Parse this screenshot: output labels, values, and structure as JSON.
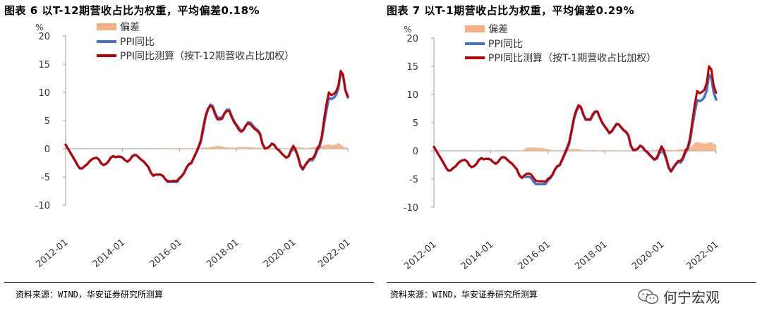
{
  "figures": [
    {
      "title": "图表 6 以T-12期营收占比为权重，平均偏差0.18%",
      "source": "资料来源：WIND，华安证券研究所测算"
    },
    {
      "title": "图表 7 以T-1期营收占比为权重，平均偏差0.29%",
      "source": "资料来源：WIND，华安证券研究所测算"
    }
  ],
  "watermark": {
    "text": "何宁宏观",
    "icon": "wechat-icon"
  },
  "colors": {
    "ppi": "#4472c4",
    "est": "#c00000",
    "dev": "#f4b183"
  },
  "chart_data": [
    {
      "type": "line",
      "title": "图表 6 以T-12期营收占比为权重，平均偏差0.18%",
      "ylabel": "%",
      "ylim": [
        -10,
        20
      ],
      "yticks": [
        "20",
        "15",
        "10",
        "5",
        "0",
        "-5",
        "-10"
      ],
      "xticks": [
        "2012-01",
        "2014-01",
        "2016-01",
        "2018-01",
        "2020-01",
        "2022-01"
      ],
      "x_start": "2012-01",
      "legend": [
        "偏差",
        "PPI同比",
        "PPI同比测算（按T-12期营收占比加权）"
      ],
      "series": [
        {
          "name": "PPI同比",
          "type": "line",
          "key": "ppi",
          "values": [
            0.7,
            0,
            -0.7,
            -1.4,
            -2.1,
            -2.9,
            -3.5,
            -3.5,
            -3.1,
            -2.8,
            -2.3,
            -1.9,
            -1.7,
            -1.6,
            -1.9,
            -2.6,
            -2.9,
            -2.7,
            -2.3,
            -1.6,
            -1.3,
            -1.5,
            -1.4,
            -1.4,
            -1.6,
            -2,
            -2.3,
            -2,
            -1.4,
            -1.1,
            -1.2,
            -1.6,
            -2,
            -2.3,
            -2.8,
            -3.3,
            -4.3,
            -4.8,
            -4.6,
            -4.6,
            -4.6,
            -4.8,
            -5.4,
            -5.9,
            -5.9,
            -5.9,
            -5.9,
            -5.9,
            -5.3,
            -4.9,
            -4.3,
            -3.4,
            -2.8,
            -2.6,
            -1.7,
            -0.8,
            0.1,
            1.2,
            3.3,
            5.5,
            6.9,
            7.8,
            7.6,
            6.4,
            5.5,
            5.5,
            5.5,
            6.3,
            6.9,
            6.9,
            5.8,
            4.9,
            4.3,
            3.7,
            3.1,
            3.4,
            4.1,
            4.7,
            4.6,
            4.1,
            3.6,
            3.3,
            2.7,
            0.9,
            0.1,
            0.1,
            0.4,
            0.9,
            0.6,
            0,
            -0.3,
            -0.8,
            -1.2,
            -1.6,
            -1.4,
            -0.5,
            0.1,
            -0.4,
            -1.5,
            -3.1,
            -3.7,
            -3,
            -2.4,
            -2,
            -2.1,
            -1.5,
            -0.4,
            0.3,
            1.7,
            4.4,
            6.8,
            9,
            8.8,
            9,
            9.5,
            10.7,
            13.5,
            12.9,
            10.3,
            9.1
          ]
        },
        {
          "name": "PPI同比测算（按T-12期营收占比加权）",
          "type": "line",
          "key": "est",
          "values": [
            0.7,
            0,
            -0.7,
            -1.4,
            -2.1,
            -2.9,
            -3.5,
            -3.5,
            -3.1,
            -2.8,
            -2.3,
            -1.9,
            -1.7,
            -1.6,
            -1.9,
            -2.6,
            -2.9,
            -2.7,
            -2.3,
            -1.6,
            -1.3,
            -1.5,
            -1.4,
            -1.4,
            -1.6,
            -2,
            -2.3,
            -2,
            -1.4,
            -1.1,
            -1.2,
            -1.6,
            -2,
            -2.3,
            -2.8,
            -3.3,
            -4.3,
            -4.8,
            -4.6,
            -4.6,
            -4.6,
            -4.8,
            -5.4,
            -5.7,
            -5.8,
            -5.7,
            -5.7,
            -5.7,
            -5.2,
            -4.8,
            -4.2,
            -3.3,
            -2.7,
            -2.5,
            -1.6,
            -0.7,
            0.3,
            1.5,
            3.8,
            5.8,
            7.1,
            7.6,
            7.3,
            6.1,
            5.2,
            5.2,
            5.3,
            6.2,
            6.7,
            6.7,
            5.6,
            4.7,
            4.1,
            3.4,
            3,
            3.3,
            4.1,
            4.5,
            4.3,
            3.8,
            3.4,
            3.1,
            2.5,
            0.8,
            0,
            0.1,
            0.4,
            0.9,
            0.7,
            0,
            -0.3,
            -0.8,
            -1.2,
            -1.6,
            -1.3,
            -0.3,
            0.5,
            -0.2,
            -1.3,
            -2.9,
            -3.6,
            -2.9,
            -2.3,
            -1.8,
            -1.8,
            -1.2,
            0,
            0.6,
            2.2,
            5.3,
            7.9,
            10,
            9.5,
            9.7,
            10.1,
            11.2,
            13.8,
            13.1,
            10.4,
            9.3
          ]
        },
        {
          "name": "偏差",
          "type": "area",
          "key": "dev",
          "values": [
            0,
            0,
            0,
            0,
            0,
            0,
            0,
            0,
            0,
            0,
            0,
            0,
            0,
            0,
            0,
            0,
            0,
            0,
            0,
            0,
            0,
            0,
            0,
            0,
            0,
            0,
            0,
            0,
            0,
            0,
            0,
            0,
            0,
            0,
            0,
            0,
            0,
            0,
            0,
            0,
            0.1,
            0.1,
            0.1,
            0.1,
            0.1,
            0.1,
            0.1,
            0.1,
            0.1,
            0.1,
            0.1,
            0.1,
            0.1,
            0.1,
            0.1,
            0.1,
            0.1,
            0.1,
            0.2,
            0.2,
            0.2,
            0.3,
            0.4,
            0.4,
            0.5,
            0.5,
            0.4,
            0.3,
            0.2,
            0.2,
            0.2,
            0.2,
            0.2,
            0.3,
            0.3,
            0.3,
            0.3,
            0.3,
            0.3,
            0.2,
            0.2,
            0.2,
            0.2,
            0.1,
            0.1,
            0.1,
            0.1,
            0.1,
            0.1,
            0.1,
            0.1,
            0.1,
            0.1,
            0.1,
            0.1,
            0.1,
            0.2,
            0.3,
            0.3,
            0.2,
            0.2,
            0.1,
            0.1,
            0.2,
            0.2,
            0.3,
            0.4,
            0.4,
            0.5,
            0.6,
            0.7,
            0.8,
            0.6,
            0.7,
            0.7,
            1.1,
            0.7,
            0.4,
            0.2,
            0.2
          ]
        }
      ]
    },
    {
      "type": "line",
      "title": "图表 7 以T-1期营收占比为权重，平均偏差0.29%",
      "ylabel": "%",
      "ylim": [
        -10,
        20
      ],
      "yticks": [
        "20",
        "15",
        "10",
        "5",
        "0",
        "-5",
        "-10"
      ],
      "xticks": [
        "2012-01",
        "2014-01",
        "2016-01",
        "2018-01",
        "2020-01",
        "2022-01"
      ],
      "x_start": "2012-01",
      "legend": [
        "偏差",
        "PPI同比",
        "PPI同比测算（按T-1期营收占比加权）"
      ],
      "series": [
        {
          "name": "PPI同比",
          "type": "line",
          "key": "ppi",
          "values": [
            0.7,
            0,
            -0.7,
            -1.4,
            -2.1,
            -2.9,
            -3.5,
            -3.5,
            -3.1,
            -2.8,
            -2.3,
            -1.9,
            -1.7,
            -1.6,
            -1.9,
            -2.6,
            -2.9,
            -2.7,
            -2.3,
            -1.6,
            -1.3,
            -1.5,
            -1.4,
            -1.4,
            -1.6,
            -2,
            -2.3,
            -2,
            -1.4,
            -1.1,
            -1.2,
            -1.6,
            -2,
            -2.3,
            -2.8,
            -3.3,
            -4.3,
            -4.8,
            -4.6,
            -4.6,
            -4.6,
            -4.8,
            -5.4,
            -5.9,
            -5.9,
            -5.9,
            -5.9,
            -5.9,
            -5.3,
            -4.9,
            -4.3,
            -3.4,
            -2.8,
            -2.6,
            -1.7,
            -0.8,
            0.1,
            1.2,
            3.3,
            5.5,
            6.9,
            7.8,
            7.6,
            6.4,
            5.5,
            5.5,
            5.5,
            6.3,
            6.9,
            6.9,
            5.8,
            4.9,
            4.3,
            3.7,
            3.1,
            3.4,
            4.1,
            4.7,
            4.6,
            4.1,
            3.6,
            3.3,
            2.7,
            0.9,
            0.1,
            0.1,
            0.4,
            0.9,
            0.6,
            0,
            -0.3,
            -0.8,
            -1.2,
            -1.6,
            -1.4,
            -0.5,
            0.1,
            -0.4,
            -1.5,
            -3.1,
            -3.7,
            -3,
            -2.4,
            -2,
            -2.1,
            -1.5,
            -0.4,
            0.3,
            1.7,
            4.4,
            6.8,
            9,
            8.8,
            9,
            9.5,
            10.7,
            13.5,
            12.9,
            10.3,
            9.1
          ]
        },
        {
          "name": "PPI同比测算（按T-1期营收占比加权）",
          "type": "line",
          "key": "est",
          "values": [
            0.7,
            0,
            -0.7,
            -1.4,
            -2.1,
            -2.9,
            -3.5,
            -3.5,
            -3.1,
            -2.8,
            -2.3,
            -1.9,
            -1.7,
            -1.6,
            -1.9,
            -2.6,
            -2.9,
            -2.7,
            -2.3,
            -1.6,
            -1.3,
            -1.5,
            -1.4,
            -1.4,
            -1.6,
            -2,
            -2.3,
            -2,
            -1.4,
            -1.1,
            -1.2,
            -1.6,
            -2,
            -2.3,
            -2.8,
            -3.3,
            -4.3,
            -4.8,
            -4.4,
            -4.1,
            -4,
            -4.2,
            -4.8,
            -5.3,
            -5.4,
            -5.4,
            -5.4,
            -5.5,
            -5,
            -4.7,
            -4.2,
            -3.3,
            -2.7,
            -2.5,
            -1.6,
            -0.6,
            0.4,
            1.5,
            3.6,
            5.8,
            7.2,
            8.1,
            7.8,
            6.5,
            5.6,
            5.6,
            5.6,
            6.5,
            7,
            7,
            5.9,
            5,
            4.4,
            3.8,
            3.2,
            3.5,
            4.2,
            4.8,
            4.7,
            4.2,
            3.7,
            3.4,
            2.8,
            1,
            0.2,
            0.2,
            0.4,
            0.9,
            0.7,
            0.1,
            -0.2,
            -0.7,
            -1.1,
            -1.5,
            -1.2,
            -0.2,
            0.8,
            0,
            -1.3,
            -2.9,
            -3.6,
            -2.9,
            -2.3,
            -1.8,
            -1.8,
            -1.2,
            0,
            0.6,
            2.3,
            5.4,
            8.2,
            10.6,
            10.2,
            10.4,
            10.8,
            12,
            15,
            14.4,
            11.5,
            10.3
          ]
        },
        {
          "name": "偏差",
          "type": "area",
          "key": "dev",
          "values": [
            0,
            0,
            0,
            0,
            0,
            0,
            0,
            0,
            0,
            0,
            0,
            0,
            0,
            0,
            0,
            0,
            0,
            0,
            0,
            0,
            0,
            0,
            0,
            0,
            0,
            0,
            0,
            0,
            0,
            0,
            0,
            0,
            0,
            0,
            0,
            0,
            0,
            0,
            0.2,
            0.5,
            0.6,
            0.6,
            0.6,
            0.6,
            0.5,
            0.5,
            0.5,
            0.4,
            0.3,
            0.2,
            0.1,
            0.1,
            0.1,
            0.1,
            0.1,
            0.2,
            0.3,
            0.3,
            0.3,
            0.3,
            0.3,
            0.3,
            0.2,
            0.1,
            0.1,
            0.1,
            0.1,
            0.2,
            0.1,
            0.1,
            0.1,
            0.1,
            0.1,
            0.1,
            0.1,
            0.1,
            0.1,
            0.1,
            0.1,
            0.1,
            0.1,
            0.1,
            0.1,
            0.1,
            0.1,
            0.1,
            0,
            0,
            0.1,
            0.1,
            0.1,
            0.1,
            0.1,
            0.1,
            0.2,
            0.3,
            0.7,
            0.4,
            0.2,
            0.2,
            0.1,
            0.1,
            0.1,
            0.2,
            0.3,
            0.3,
            0.4,
            0.3,
            0.6,
            1,
            1.4,
            1.6,
            1.4,
            1.4,
            1.3,
            1.3,
            1.5,
            1.5,
            1.2,
            1.2
          ]
        }
      ]
    }
  ]
}
